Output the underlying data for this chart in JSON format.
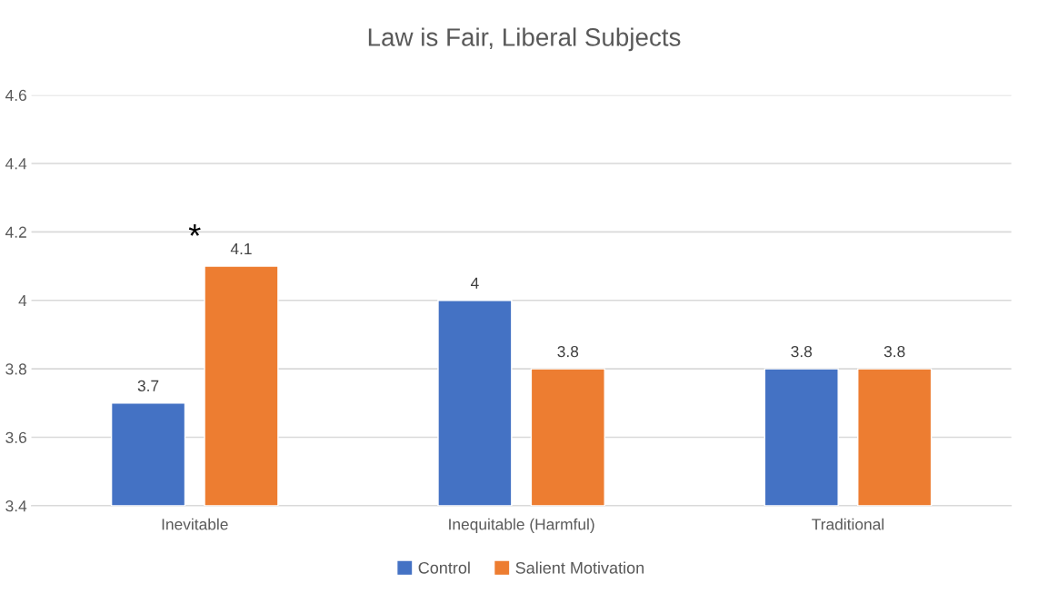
{
  "chart_data": {
    "type": "bar",
    "title": "Law is Fair, Liberal Subjects",
    "categories": [
      "Inevitable",
      "Inequitable (Harmful)",
      "Traditional"
    ],
    "series": [
      {
        "name": "Control",
        "color": "#4472c4",
        "values": [
          3.7,
          4,
          3.8
        ]
      },
      {
        "name": "Salient Motivation",
        "color": "#ed7d31",
        "values": [
          4.1,
          3.8,
          3.8
        ]
      }
    ],
    "ylim": [
      3.4,
      4.6
    ],
    "yticks": [
      3.4,
      3.6,
      3.8,
      4,
      4.2,
      4.4,
      4.6
    ],
    "grid": "y",
    "legend": "bottom",
    "data_labels": true,
    "annotations": [
      "*"
    ]
  }
}
